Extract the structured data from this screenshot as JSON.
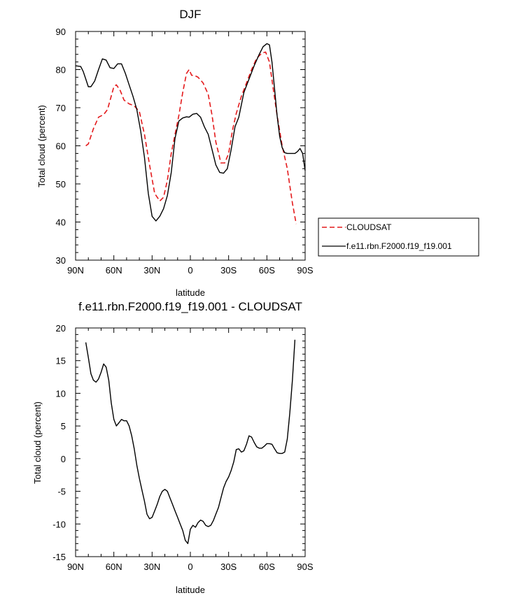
{
  "chart_data": [
    {
      "type": "line",
      "title": "DJF",
      "xlabel": "latitude",
      "ylabel": "Total cloud (percent)",
      "xlim": [
        -90,
        90
      ],
      "ylim": [
        30,
        90
      ],
      "x_ticks": [
        -90,
        -60,
        -30,
        0,
        30,
        60,
        90
      ],
      "x_tick_labels": [
        "90N",
        "60N",
        "30N",
        "0",
        "30S",
        "60S",
        "90S"
      ],
      "y_ticks": [
        30,
        40,
        50,
        60,
        70,
        80,
        90
      ],
      "y_tick_labels": [
        "30",
        "40",
        "50",
        "60",
        "70",
        "80",
        "90"
      ],
      "legend": "right",
      "series": [
        {
          "name": "CLOUDSAT",
          "color": "#e41a1c",
          "dash": "dashed",
          "x": [
            -82,
            -80,
            -76,
            -72,
            -68,
            -65,
            -60,
            -58,
            -55,
            -52,
            -48,
            -44,
            -40,
            -36,
            -32,
            -28,
            -24,
            -21,
            -18,
            -15,
            -12,
            -9,
            -6,
            -3,
            -1,
            1,
            3,
            6,
            10,
            14,
            17,
            20,
            24,
            27,
            30,
            33,
            36,
            40,
            44,
            48,
            52,
            56,
            59,
            62,
            65,
            68,
            72,
            76,
            80,
            83
          ],
          "y": [
            60,
            60.5,
            64.5,
            67.5,
            68.2,
            69.5,
            75.5,
            76,
            74.5,
            72,
            71,
            70.5,
            69,
            63,
            55,
            47.5,
            45.5,
            46.5,
            51,
            58,
            63,
            68,
            74,
            79,
            80,
            78.5,
            78.5,
            78,
            76.5,
            73.5,
            68,
            61,
            55.5,
            55.5,
            58,
            64,
            68.5,
            73,
            76.5,
            80,
            83,
            84.3,
            84.6,
            82,
            75,
            68,
            60,
            54,
            45,
            39.5
          ]
        },
        {
          "name": "f.e11.rbn.F2000.f19_f19.001",
          "color": "#000000",
          "dash": "solid",
          "x": [
            -90,
            -86,
            -84,
            -82,
            -80,
            -78,
            -75,
            -72,
            -69,
            -66,
            -63,
            -60,
            -57,
            -54,
            -51,
            -48,
            -45,
            -42,
            -39,
            -36,
            -33,
            -30,
            -27,
            -24,
            -21,
            -18,
            -15,
            -12,
            -9,
            -6,
            -3,
            -1,
            2,
            5,
            8,
            11,
            14,
            17,
            20,
            23,
            26,
            29,
            32,
            35,
            38,
            42,
            46,
            50,
            54,
            57,
            60,
            62,
            64,
            66,
            68,
            70,
            72,
            74,
            76,
            79,
            82,
            84,
            86,
            88,
            90
          ],
          "y": [
            81,
            80.8,
            79.5,
            77.5,
            75.5,
            75.5,
            77,
            80,
            82.8,
            82.5,
            80.5,
            80.3,
            81.5,
            81.5,
            79,
            76,
            73,
            69.5,
            64,
            57,
            47.5,
            41.5,
            40.3,
            41.5,
            43.5,
            47,
            53,
            62,
            66.5,
            67.3,
            67.6,
            67.5,
            68.3,
            68.5,
            67.5,
            65,
            63,
            59,
            55,
            53,
            52.8,
            54,
            59,
            65,
            67.5,
            74,
            77.5,
            81,
            84,
            86,
            86.8,
            86.5,
            82,
            75,
            68,
            62.5,
            59.5,
            58.2,
            58,
            58,
            58,
            58.5,
            59.3,
            58,
            53.5
          ]
        }
      ]
    },
    {
      "type": "line",
      "title": "f.e11.rbn.F2000.f19_f19.001 - CLOUDSAT",
      "xlabel": "latitude",
      "ylabel": "Total cloud (percent)",
      "xlim": [
        -90,
        90
      ],
      "ylim": [
        -15,
        20
      ],
      "x_ticks": [
        -90,
        -60,
        -30,
        0,
        30,
        60,
        90
      ],
      "x_tick_labels": [
        "90N",
        "60N",
        "30N",
        "0",
        "30S",
        "60S",
        "90S"
      ],
      "y_ticks": [
        -15,
        -10,
        -5,
        0,
        5,
        10,
        15,
        20
      ],
      "y_tick_labels": [
        "-15",
        "-10",
        "-5",
        "0",
        "5",
        "10",
        "15",
        "20"
      ],
      "series": [
        {
          "color": "#000000",
          "dash": "solid",
          "x": [
            -82,
            -80,
            -78,
            -76,
            -74,
            -72,
            -70,
            -68,
            -66,
            -64,
            -62,
            -60,
            -58,
            -56,
            -54,
            -52,
            -50,
            -48,
            -46,
            -44,
            -42,
            -40,
            -38,
            -36,
            -34,
            -32,
            -30,
            -28,
            -26,
            -24,
            -22,
            -20,
            -18,
            -16,
            -14,
            -12,
            -10,
            -8,
            -6,
            -4,
            -2,
            0,
            2,
            4,
            6,
            8,
            10,
            12,
            14,
            16,
            18,
            20,
            22,
            24,
            26,
            28,
            30,
            32,
            34,
            36,
            38,
            40,
            42,
            44,
            46,
            48,
            50,
            52,
            54,
            56,
            58,
            60,
            62,
            64,
            66,
            68,
            70,
            72,
            74,
            76,
            78,
            80,
            82
          ],
          "y": [
            17.8,
            15.5,
            13,
            12,
            11.7,
            12.2,
            13.2,
            14.5,
            14,
            12,
            8.5,
            6,
            5,
            5.5,
            6,
            5.8,
            5.8,
            5,
            3.5,
            1.5,
            -1,
            -3,
            -4.8,
            -6.5,
            -8.5,
            -9.2,
            -9,
            -8,
            -7,
            -5.8,
            -5,
            -4.7,
            -5,
            -6,
            -7,
            -8,
            -9,
            -10,
            -11,
            -12.5,
            -13,
            -10.8,
            -10.2,
            -10.5,
            -9.8,
            -9.4,
            -9.6,
            -10.2,
            -10.4,
            -10.2,
            -9.5,
            -8.5,
            -7.5,
            -6,
            -4.5,
            -3.5,
            -2.8,
            -1.8,
            -0.5,
            1.4,
            1.5,
            1,
            1.2,
            2.2,
            3.5,
            3.3,
            2.5,
            1.8,
            1.6,
            1.6,
            1.9,
            2.3,
            2.3,
            2.2,
            1.5,
            0.9,
            0.8,
            0.8,
            1,
            3,
            7,
            12,
            18.2
          ]
        }
      ]
    }
  ]
}
